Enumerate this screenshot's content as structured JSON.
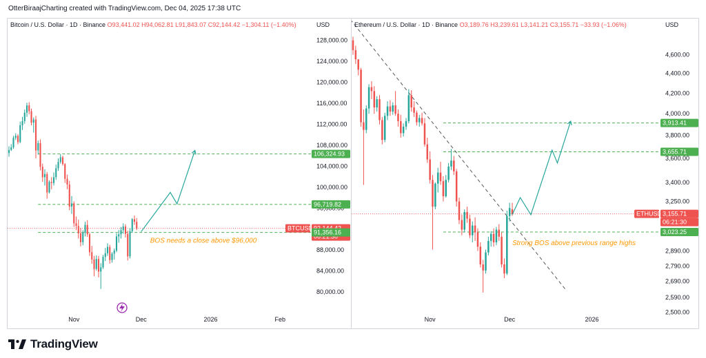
{
  "header": {
    "text": "OtterBiraajCharting created with TradingView.com, Dec 04, 2025 17:38 UTC"
  },
  "footer": {
    "brand": "TradingView",
    "icon": "tradingview-logo-icon"
  },
  "colors": {
    "up": "#26a69a",
    "down": "#ef5350",
    "level": "#4caf50",
    "note": "#ff9800",
    "trend": "#555555",
    "current": "#ef5350"
  },
  "charts": [
    {
      "id": "btc",
      "legend": {
        "title": "Bitcoin / U.S. Dollar · 1D · Binance",
        "o": "O93,441.02",
        "h": "H94,062.81",
        "l": "L91,843.07",
        "c": "C92,144.42",
        "chg": "−1,304.11 (−1.40%)"
      },
      "axis_label": "USD",
      "x_labels": [
        {
          "label": "Nov",
          "t": 30
        },
        {
          "label": "Dec",
          "t": 60
        },
        {
          "label": "2026",
          "t": 91
        },
        {
          "label": "Feb",
          "t": 122
        }
      ],
      "annotation": "BOS needs a close above $96,000",
      "badges": [
        {
          "text": "106,324.93",
          "type": "level"
        },
        {
          "text": "96,719.82",
          "type": "level"
        },
        {
          "text": "BTCUSD",
          "type": "symbol"
        },
        {
          "text": "92,144.42",
          "type": "current"
        },
        {
          "text": "06:21:30",
          "type": "current"
        },
        {
          "text": "91,356.16",
          "type": "level"
        }
      ]
    },
    {
      "id": "eth",
      "legend": {
        "title": "Ethereum / U.S. Dollar · 1D · Binance",
        "o": "O3,189.76",
        "h": "H3,239.61",
        "l": "L3,141.21",
        "c": "C3,155.71",
        "chg": "−33.93 (−1.06%)"
      },
      "axis_label": "USD",
      "x_labels": [
        {
          "label": "Nov",
          "t": 30
        },
        {
          "label": "Dec",
          "t": 60
        },
        {
          "label": "2026",
          "t": 91
        }
      ],
      "annotation": "Strong BOS above previous range highs",
      "badges": [
        {
          "text": "3,913.41",
          "type": "level"
        },
        {
          "text": "3,655.71",
          "type": "level"
        },
        {
          "text": "ETHUSD",
          "type": "symbol"
        },
        {
          "text": "3,155.71",
          "type": "current"
        },
        {
          "text": "06:21:30",
          "type": "current"
        },
        {
          "text": "3,023.25",
          "type": "level"
        }
      ]
    }
  ],
  "chart_data": [
    {
      "type": "candlestick",
      "title": "Bitcoin / U.S. Dollar · 1D · Binance",
      "ylabel": "USD",
      "scale": "linear",
      "ylim": [
        77000,
        129000
      ],
      "xlim": [
        1,
        131
      ],
      "y_ticks": [
        80000,
        84000,
        88000,
        92000,
        96000,
        100000,
        104000,
        108000,
        112000,
        116000,
        120000,
        124000,
        128000
      ],
      "current_price": 92144.42,
      "levels": [
        106324.93,
        96719.82,
        91356.16
      ],
      "projection": [
        [
          60,
          91500
        ],
        [
          73,
          99000
        ],
        [
          76,
          96800
        ],
        [
          84,
          107000
        ]
      ],
      "candles_desc": "[open, high, low, close] daily, index 1 = Oct 1 (approx from chart)",
      "candles": [
        [
          106500,
          107800,
          105800,
          107100
        ],
        [
          107100,
          108200,
          106900,
          107600
        ],
        [
          107600,
          109800,
          107300,
          109400
        ],
        [
          109400,
          110300,
          109000,
          109800
        ],
        [
          109800,
          110100,
          108200,
          108600
        ],
        [
          108600,
          112500,
          108400,
          111800
        ],
        [
          111800,
          113400,
          110900,
          112600
        ],
        [
          112600,
          114800,
          112100,
          114200
        ],
        [
          114200,
          116100,
          113400,
          115600
        ],
        [
          115600,
          116200,
          113900,
          114500
        ],
        [
          114500,
          115000,
          111800,
          112300
        ],
        [
          112300,
          113300,
          110400,
          112900
        ],
        [
          112900,
          113600,
          105500,
          107000
        ],
        [
          107000,
          108900,
          106200,
          108400
        ],
        [
          108400,
          109100,
          103200,
          103900
        ],
        [
          103900,
          104500,
          101000,
          101900
        ],
        [
          101900,
          103400,
          100300,
          102500
        ],
        [
          102500,
          102900,
          97800,
          99000
        ],
        [
          99000,
          101300,
          98800,
          101000
        ],
        [
          101000,
          101900,
          99600,
          100800
        ],
        [
          100800,
          102800,
          100300,
          101900
        ],
        [
          101900,
          104300,
          101400,
          103600
        ],
        [
          103600,
          105500,
          103100,
          104800
        ],
        [
          104800,
          106300,
          104500,
          105700
        ],
        [
          105700,
          106000,
          104100,
          104400
        ],
        [
          104400,
          104600,
          100800,
          101600
        ],
        [
          101600,
          102400,
          99600,
          100500
        ],
        [
          100500,
          101200,
          95600,
          96300
        ],
        [
          96300,
          98300,
          94900,
          96900
        ],
        [
          96900,
          97300,
          92400,
          93100
        ],
        [
          93100,
          94400,
          91800,
          92600
        ],
        [
          92600,
          93800,
          90200,
          91200
        ],
        [
          91200,
          92200,
          88700,
          89500
        ],
        [
          89500,
          91800,
          88900,
          91300
        ],
        [
          91300,
          93400,
          90600,
          92800
        ],
        [
          92800,
          93700,
          90500,
          91000
        ],
        [
          91000,
          91300,
          86900,
          87600
        ],
        [
          87600,
          88800,
          85400,
          86200
        ],
        [
          86200,
          86900,
          83000,
          84400
        ],
        [
          84400,
          87000,
          84100,
          86300
        ],
        [
          86300,
          86900,
          82800,
          83900
        ],
        [
          83900,
          85500,
          80600,
          84700
        ],
        [
          84700,
          87100,
          84400,
          86700
        ],
        [
          86700,
          88400,
          85900,
          87400
        ],
        [
          87400,
          89300,
          86900,
          88600
        ],
        [
          88600,
          89000,
          85400,
          86100
        ],
        [
          86100,
          87600,
          85600,
          87300
        ],
        [
          87300,
          88300,
          86200,
          87900
        ],
        [
          87900,
          91200,
          87600,
          90600
        ],
        [
          90600,
          91800,
          89400,
          91000
        ],
        [
          91000,
          92400,
          90200,
          91800
        ],
        [
          91800,
          93100,
          91100,
          92500
        ],
        [
          92500,
          92900,
          90400,
          91100
        ],
        [
          91100,
          91700,
          86000,
          86800
        ],
        [
          86800,
          92200,
          86400,
          91600
        ],
        [
          91600,
          94100,
          91300,
          93900
        ],
        [
          93900,
          94600,
          92800,
          93400
        ],
        [
          93400,
          94100,
          91800,
          92144
        ]
      ]
    },
    {
      "type": "candlestick",
      "title": "Ethereum / U.S. Dollar · 1D · Binance",
      "ylabel": "USD",
      "scale": "log",
      "ylim": [
        2470,
        4850
      ],
      "xlim": [
        1,
        101
      ],
      "y_ticks": [
        2500,
        2590,
        2690,
        2790,
        2890,
        3023.25,
        3250,
        3400,
        3600,
        3800,
        4000,
        4200,
        4400,
        4600
      ],
      "current_price": 3155.71,
      "levels": [
        3913.41,
        3655.71,
        3023.25
      ],
      "trendline": [
        [
          0,
          5000
        ],
        [
          81,
          2640
        ]
      ],
      "projection": [
        [
          61,
          3150
        ],
        [
          64,
          3280
        ],
        [
          68,
          3150
        ],
        [
          76,
          3670
        ],
        [
          78,
          3560
        ],
        [
          83,
          3930
        ]
      ],
      "candles_desc": "[open, high, low, close] daily, index 1 = Oct 1 (approx from chart)",
      "candles": [
        [
          4760,
          4800,
          4600,
          4650
        ],
        [
          4650,
          4700,
          4500,
          4550
        ],
        [
          4550,
          4550,
          4380,
          4440
        ],
        [
          4440,
          4460,
          3880,
          3920
        ],
        [
          3920,
          4040,
          3380,
          3850
        ],
        [
          3850,
          4080,
          3820,
          4050
        ],
        [
          4050,
          4290,
          4000,
          4260
        ],
        [
          4260,
          4320,
          4140,
          4220
        ],
        [
          4220,
          4270,
          4000,
          4060
        ],
        [
          4060,
          4170,
          4020,
          4140
        ],
        [
          4140,
          4180,
          3900,
          3940
        ],
        [
          3940,
          3970,
          3720,
          3760
        ],
        [
          3760,
          4010,
          3740,
          3980
        ],
        [
          3980,
          4120,
          3940,
          4070
        ],
        [
          4070,
          4130,
          3980,
          4020
        ],
        [
          4020,
          4110,
          3990,
          4080
        ],
        [
          4080,
          4220,
          3980,
          4000
        ],
        [
          4000,
          4040,
          3880,
          3930
        ],
        [
          3930,
          3990,
          3780,
          3820
        ],
        [
          3820,
          3910,
          3790,
          3880
        ],
        [
          3880,
          3960,
          3850,
          3930
        ],
        [
          3930,
          4240,
          3910,
          4180
        ],
        [
          4180,
          4230,
          4020,
          4060
        ],
        [
          4060,
          4120,
          3970,
          4010
        ],
        [
          4010,
          4030,
          3890,
          3920
        ],
        [
          3920,
          3990,
          3880,
          3960
        ],
        [
          3960,
          4010,
          3890,
          3910
        ],
        [
          3910,
          3960,
          3700,
          3720
        ],
        [
          3720,
          3780,
          3560,
          3590
        ],
        [
          3590,
          3660,
          3390,
          3420
        ],
        [
          3420,
          3460,
          2900,
          3210
        ],
        [
          3210,
          3400,
          3190,
          3390
        ],
        [
          3390,
          3520,
          3320,
          3480
        ],
        [
          3480,
          3570,
          3380,
          3410
        ],
        [
          3410,
          3450,
          3250,
          3290
        ],
        [
          3290,
          3460,
          3280,
          3420
        ],
        [
          3420,
          3560,
          3400,
          3530
        ],
        [
          3530,
          3680,
          3500,
          3580
        ],
        [
          3580,
          3620,
          3460,
          3490
        ],
        [
          3490,
          3510,
          3210,
          3250
        ],
        [
          3250,
          3280,
          3080,
          3110
        ],
        [
          3110,
          3150,
          3000,
          3040
        ],
        [
          3040,
          3190,
          3020,
          3170
        ],
        [
          3170,
          3210,
          3090,
          3120
        ],
        [
          3120,
          3150,
          2980,
          3000
        ],
        [
          3000,
          3100,
          2950,
          3070
        ],
        [
          3070,
          3130,
          2960,
          3020
        ],
        [
          3020,
          3050,
          2890,
          2920
        ],
        [
          2920,
          2950,
          2780,
          2800
        ],
        [
          2800,
          2830,
          2620,
          2760
        ],
        [
          2760,
          2900,
          2740,
          2880
        ],
        [
          2880,
          2990,
          2860,
          2960
        ],
        [
          2960,
          3030,
          2920,
          3010
        ],
        [
          3010,
          3050,
          2920,
          2950
        ],
        [
          2950,
          3060,
          2930,
          3040
        ],
        [
          3040,
          3080,
          2960,
          2990
        ],
        [
          2990,
          3020,
          2780,
          2800
        ],
        [
          2800,
          2840,
          2710,
          2740
        ],
        [
          2740,
          3180,
          2730,
          3140
        ],
        [
          3140,
          3240,
          3100,
          3200
        ],
        [
          3190,
          3240,
          3141,
          3156
        ]
      ]
    }
  ]
}
